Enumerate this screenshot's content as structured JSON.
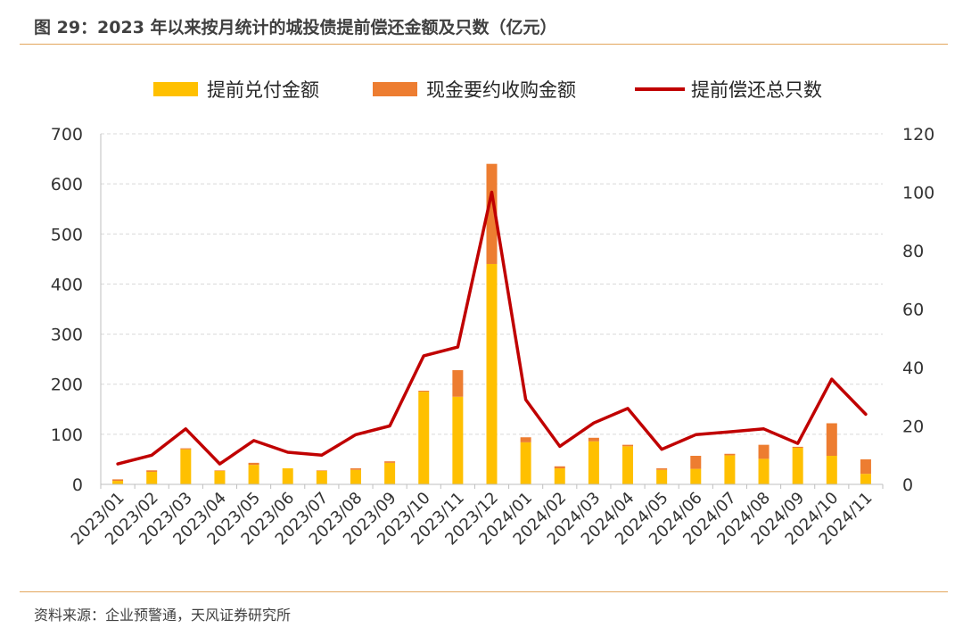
{
  "title": "图 29：2023 年以来按月统计的城投债提前偿还金额及只数（亿元）",
  "source": "资料来源：企业预警通，天风证券研究所",
  "colors": {
    "bar1": "#FFC000",
    "bar2": "#ED7D31",
    "line": "#C00000",
    "grid": "#D9D9D9",
    "rule": "#E3A65E"
  },
  "chart_data": {
    "type": "bar",
    "title": "",
    "legend_position": "top",
    "categories": [
      "2023/01",
      "2023/02",
      "2023/03",
      "2023/04",
      "2023/05",
      "2023/06",
      "2023/07",
      "2023/08",
      "2023/09",
      "2023/10",
      "2023/11",
      "2023/12",
      "2024/01",
      "2024/02",
      "2024/03",
      "2024/04",
      "2024/05",
      "2024/06",
      "2024/07",
      "2024/08",
      "2024/09",
      "2024/10",
      "2024/11"
    ],
    "series": [
      {
        "name": "提前兑付金额",
        "type": "bar",
        "stack": "amount",
        "axis": "left",
        "values": [
          7,
          25,
          70,
          27,
          39,
          32,
          27,
          29,
          43,
          185,
          175,
          440,
          84,
          32,
          86,
          76,
          29,
          31,
          58,
          51,
          73,
          57,
          21
        ]
      },
      {
        "name": "现金要约收购金额",
        "type": "bar",
        "stack": "amount",
        "axis": "left",
        "values": [
          3,
          3,
          2,
          1,
          4,
          0,
          1,
          3,
          3,
          2,
          53,
          200,
          10,
          4,
          7,
          3,
          3,
          26,
          3,
          28,
          2,
          65,
          29
        ]
      },
      {
        "name": "提前偿还总只数",
        "type": "line",
        "axis": "right",
        "values": [
          7,
          10,
          19,
          7,
          15,
          11,
          10,
          17,
          20,
          44,
          47,
          100,
          29,
          13,
          21,
          26,
          12,
          17,
          18,
          19,
          14,
          36,
          24
        ]
      }
    ],
    "y_left": {
      "min": 0,
      "max": 700,
      "ticks": [
        0,
        100,
        200,
        300,
        400,
        500,
        600,
        700
      ]
    },
    "y_right": {
      "min": 0,
      "max": 120,
      "ticks": [
        0,
        20,
        40,
        60,
        80,
        100,
        120
      ]
    },
    "grid": true
  }
}
